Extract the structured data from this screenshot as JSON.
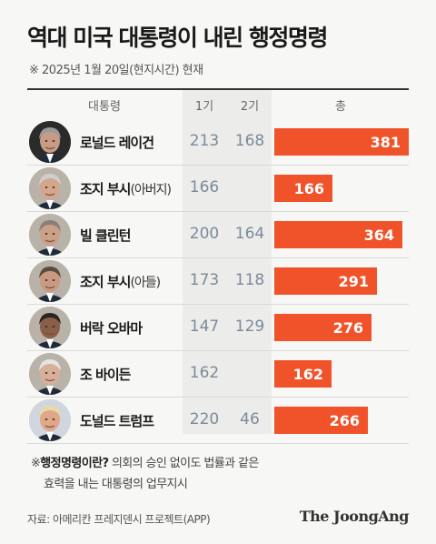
{
  "title": "역대 미국 대통령이 내린 행정명령",
  "subtitle": "※ 2025년 1월 20일(현지시간) 현재",
  "headers": {
    "president": "대통령",
    "term1": "1기",
    "term2": "2기",
    "total": "총"
  },
  "chart_data": {
    "type": "table",
    "columns": [
      "대통령",
      "1기",
      "2기",
      "총"
    ],
    "max_total": 381,
    "rows": [
      {
        "name": "로널드 레이건",
        "suffix": "",
        "term1": 213,
        "term2": 168,
        "total": 381,
        "label": "381",
        "t1": "213",
        "t2": "168"
      },
      {
        "name": "조지 부시",
        "suffix": "(아버지)",
        "term1": 166,
        "term2": null,
        "total": 166,
        "label": "166",
        "t1": "166",
        "t2": ""
      },
      {
        "name": "빌 클린턴",
        "suffix": "",
        "term1": 200,
        "term2": 164,
        "total": 364,
        "label": "364",
        "t1": "200",
        "t2": "164"
      },
      {
        "name": "조지 부시",
        "suffix": "(아들)",
        "term1": 173,
        "term2": 118,
        "total": 291,
        "label": "291",
        "t1": "173",
        "t2": "118"
      },
      {
        "name": "버락 오바마",
        "suffix": "",
        "term1": 147,
        "term2": 129,
        "total": 276,
        "label": "276",
        "t1": "147",
        "t2": "129"
      },
      {
        "name": "조 바이든",
        "suffix": "",
        "term1": 162,
        "term2": null,
        "total": 162,
        "label": "162",
        "t1": "162",
        "t2": ""
      },
      {
        "name": "도널드 트럼프",
        "suffix": "",
        "term1": 220,
        "term2": 46,
        "total": 266,
        "label": "266",
        "t1": "220",
        "t2": "46"
      }
    ]
  },
  "note": {
    "prefix": "※",
    "term": "행정명령이란?",
    "line1_rest": " 의회의 승인 없이도 법률과 같은",
    "line2": "효력을 내는 대통령의 업무지시"
  },
  "source": "자료: 아메리칸 프레지덴시 프로젝트(APP)",
  "logo": "The JoongAng",
  "colors": {
    "bar": "#f0532a",
    "term_text": "#7a8a9a",
    "column_bg": "#ececea"
  }
}
